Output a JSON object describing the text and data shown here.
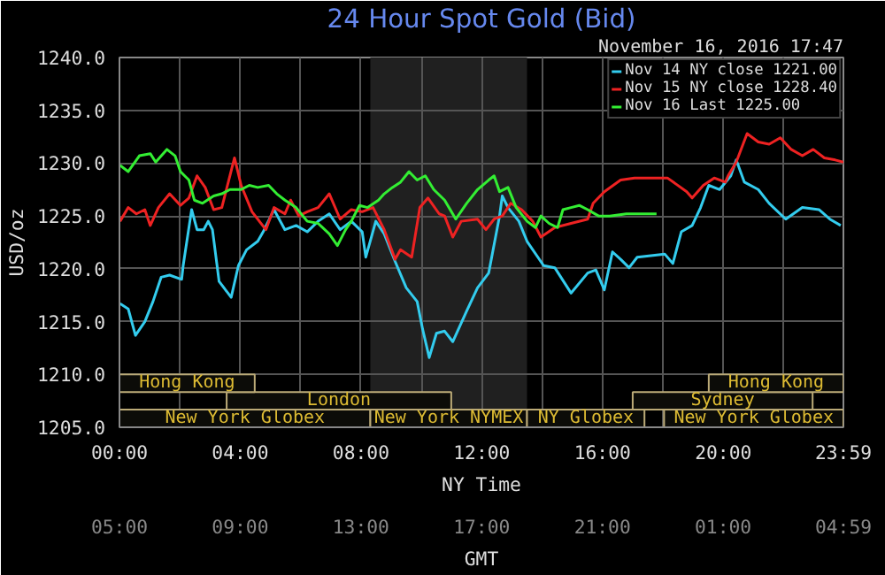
{
  "chart_data": {
    "type": "line",
    "title": "24 Hour Spot Gold (Bid)",
    "subtitle": "November 16, 2016 17:47",
    "ylabel": "USD/oz",
    "xlabel": "NY Time",
    "x2label": "GMT",
    "xlim": [
      0,
      23.98
    ],
    "ylim": [
      1205,
      1240
    ],
    "xticks": [
      {
        "value": 0,
        "label": "00:00"
      },
      {
        "value": 2,
        "label": null
      },
      {
        "value": 4,
        "label": "04:00"
      },
      {
        "value": 6,
        "label": null
      },
      {
        "value": 8,
        "label": "08:00"
      },
      {
        "value": 10,
        "label": null
      },
      {
        "value": 12,
        "label": "12:00"
      },
      {
        "value": 14,
        "label": null
      },
      {
        "value": 16,
        "label": "16:00"
      },
      {
        "value": 18,
        "label": null
      },
      {
        "value": 20,
        "label": "20:00"
      },
      {
        "value": 22,
        "label": null
      },
      {
        "value": 23.98,
        "label": "23:59"
      }
    ],
    "x2lim": [
      "2016-11-16T05:00",
      "2016-11-17T04:59"
    ],
    "x2ticks": [
      {
        "value": "2016-11-16T05:00",
        "label": "05:00"
      },
      {
        "value": "2016-11-16T09:00",
        "label": "09:00"
      },
      {
        "value": "2016-11-16T13:00",
        "label": "13:00"
      },
      {
        "value": "2016-11-16T17:00",
        "label": "17:00"
      },
      {
        "value": "2016-11-16T21:00",
        "label": "21:00"
      },
      {
        "value": "2016-11-17T01:00",
        "label": "01:00"
      },
      {
        "value": "2016-11-17T04:59",
        "label": "04:59"
      }
    ],
    "yticks": [
      {
        "value": 1205,
        "label": "1205.0"
      },
      {
        "value": 1210,
        "label": "1210.0"
      },
      {
        "value": 1215,
        "label": "1215.0"
      },
      {
        "value": 1220,
        "label": "1220.0"
      },
      {
        "value": 1225,
        "label": "1225.0"
      },
      {
        "value": 1230,
        "label": "1230.0"
      },
      {
        "value": 1235,
        "label": "1235.0"
      },
      {
        "value": 1240,
        "label": "1240.0"
      }
    ],
    "grid": true,
    "legend": "top right",
    "marker": "none",
    "line_style": "solid",
    "bands": [
      {
        "axis": "x",
        "from": 8.31,
        "to": 13.5,
        "color": "#202020"
      },
      {
        "axis": "x",
        "from": 0,
        "to": 8.31,
        "label": "New York Globex",
        "color": "#0c0c08"
      },
      {
        "axis": "x",
        "from": 8.31,
        "to": 13.5,
        "label": "New York NYMEX",
        "color": "#0c0c08"
      },
      {
        "axis": "x",
        "from": 13.5,
        "to": 17.39,
        "label": "NY Globex",
        "color": "#0c0c08"
      },
      {
        "axis": "x",
        "from": 18.04,
        "to": 23.98,
        "label": "New York Globex",
        "color": "#0c0c08"
      },
      {
        "axis": "x",
        "from": 3.55,
        "to": 10.99,
        "label": "London",
        "color": "#0c0c08"
      },
      {
        "axis": "x",
        "from": 17.0,
        "to": 22.96,
        "label": "Sydney",
        "color": "#0c0c08"
      },
      {
        "axis": "x",
        "from": 0,
        "to": 4.48,
        "label": "Hong Kong",
        "color": "#0c0c08"
      },
      {
        "axis": "x",
        "from": 19.52,
        "to": 23.98,
        "label": "Hong Kong",
        "color": "#0c0c08"
      }
    ],
    "series": [
      {
        "name": "Nov 14 NY close 1221.00",
        "color": "#33ccee",
        "x": [
          0.02,
          0.29,
          0.53,
          0.84,
          1.11,
          1.38,
          1.66,
          2.06,
          2.11,
          2.39,
          2.57,
          2.79,
          2.94,
          3.08,
          3.3,
          3.7,
          3.94,
          4.21,
          4.58,
          4.76,
          5.12,
          5.48,
          5.85,
          6.22,
          6.58,
          6.95,
          7.31,
          7.68,
          8.04,
          8.16,
          8.49,
          8.77,
          9.13,
          9.5,
          9.86,
          10.04,
          10.26,
          10.5,
          10.77,
          11.04,
          11.5,
          11.86,
          12.23,
          12.59,
          12.68,
          12.87,
          13.23,
          13.5,
          14.05,
          14.42,
          14.96,
          15.51,
          15.78,
          16.06,
          16.33,
          16.6,
          16.88,
          17.15,
          18.06,
          18.33,
          18.61,
          18.97,
          19.25,
          19.52,
          19.88,
          20.25,
          20.43,
          20.7,
          21.16,
          21.52,
          22.07,
          22.62,
          23.17,
          23.53,
          23.89
        ],
        "values": [
          1216.7,
          1216.2,
          1213.7,
          1215.0,
          1216.9,
          1219.2,
          1219.4,
          1219.0,
          1220.3,
          1225.6,
          1223.7,
          1223.7,
          1224.5,
          1223.7,
          1218.8,
          1217.3,
          1220.3,
          1221.8,
          1222.6,
          1223.5,
          1225.6,
          1223.7,
          1224.1,
          1223.5,
          1224.5,
          1225.2,
          1223.7,
          1224.5,
          1223.5,
          1221.1,
          1224.5,
          1223.3,
          1220.7,
          1218.2,
          1216.9,
          1214.3,
          1211.6,
          1213.9,
          1214.1,
          1213.1,
          1216.0,
          1218.2,
          1219.6,
          1225.0,
          1226.9,
          1225.8,
          1224.5,
          1222.6,
          1220.3,
          1220.1,
          1217.7,
          1219.6,
          1219.9,
          1218.0,
          1221.6,
          1220.9,
          1220.1,
          1221.1,
          1221.4,
          1220.5,
          1223.5,
          1224.1,
          1225.8,
          1227.9,
          1227.5,
          1228.8,
          1230.3,
          1228.2,
          1227.5,
          1226.2,
          1224.7,
          1225.8,
          1225.6,
          1224.7,
          1224.1
        ]
      },
      {
        "name": "Nov 15 NY close 1228.40",
        "color": "#ee2222",
        "x": [
          0.02,
          0.29,
          0.56,
          0.84,
          1.02,
          1.29,
          1.66,
          2.02,
          2.3,
          2.57,
          2.84,
          3.12,
          3.39,
          3.81,
          4.03,
          4.39,
          4.85,
          5.12,
          5.48,
          5.67,
          5.94,
          6.22,
          6.58,
          6.95,
          7.31,
          7.68,
          8.04,
          8.4,
          8.77,
          9.13,
          9.31,
          9.68,
          9.95,
          10.22,
          10.59,
          10.77,
          11.04,
          11.32,
          11.86,
          12.14,
          12.41,
          12.68,
          12.96,
          13.32,
          13.69,
          13.96,
          14.42,
          14.96,
          15.51,
          15.69,
          16.06,
          16.6,
          17.06,
          18.15,
          18.79,
          18.97,
          19.34,
          19.7,
          20.07,
          20.16,
          20.43,
          20.79,
          21.16,
          21.52,
          21.89,
          22.25,
          22.62,
          22.98,
          23.35,
          23.71,
          23.98
        ],
        "values": [
          1224.5,
          1225.8,
          1225.2,
          1225.6,
          1224.1,
          1225.8,
          1227.1,
          1226.0,
          1226.7,
          1228.8,
          1227.7,
          1225.6,
          1225.8,
          1230.5,
          1227.9,
          1225.4,
          1223.7,
          1225.8,
          1225.2,
          1226.5,
          1225.0,
          1225.4,
          1225.8,
          1227.1,
          1224.7,
          1225.6,
          1225.4,
          1225.8,
          1223.7,
          1220.9,
          1221.8,
          1221.1,
          1225.8,
          1226.7,
          1225.2,
          1225.0,
          1223.0,
          1224.5,
          1224.7,
          1223.7,
          1224.7,
          1225.0,
          1226.2,
          1225.6,
          1224.5,
          1223.0,
          1223.9,
          1224.3,
          1224.7,
          1226.2,
          1227.3,
          1228.4,
          1228.6,
          1228.6,
          1227.3,
          1226.7,
          1227.9,
          1228.6,
          1228.2,
          1228.8,
          1230.1,
          1232.8,
          1232.0,
          1231.8,
          1232.4,
          1231.3,
          1230.7,
          1231.3,
          1230.5,
          1230.3,
          1230.1
        ]
      },
      {
        "name": "Nov 16 Last 1225.00",
        "color": "#33ee33",
        "x": [
          0.02,
          0.29,
          0.66,
          1.02,
          1.2,
          1.57,
          1.84,
          2.02,
          2.3,
          2.48,
          2.75,
          3.12,
          3.39,
          3.66,
          4.03,
          4.3,
          4.58,
          4.94,
          5.21,
          5.48,
          5.85,
          6.22,
          6.58,
          6.95,
          7.22,
          7.49,
          7.68,
          7.95,
          8.22,
          8.58,
          8.77,
          9.04,
          9.31,
          9.59,
          9.86,
          10.13,
          10.41,
          10.77,
          11.14,
          11.5,
          11.86,
          12.23,
          12.41,
          12.59,
          12.87,
          13.14,
          13.5,
          13.78,
          13.96,
          14.23,
          14.51,
          14.69,
          14.96,
          15.23,
          15.51,
          15.87,
          16.24,
          16.79,
          17.33,
          17.79
        ],
        "values": [
          1229.8,
          1229.2,
          1230.7,
          1230.9,
          1230.1,
          1231.3,
          1230.7,
          1229.2,
          1228.4,
          1226.5,
          1226.2,
          1226.9,
          1227.1,
          1227.5,
          1227.5,
          1227.9,
          1227.7,
          1227.9,
          1227.1,
          1226.5,
          1225.8,
          1224.5,
          1224.3,
          1223.3,
          1222.2,
          1223.7,
          1224.5,
          1226.0,
          1225.8,
          1226.5,
          1227.1,
          1227.7,
          1228.2,
          1229.2,
          1228.4,
          1228.8,
          1227.5,
          1226.5,
          1224.7,
          1226.2,
          1227.5,
          1228.4,
          1228.8,
          1227.3,
          1227.7,
          1225.8,
          1224.5,
          1223.9,
          1225.0,
          1224.3,
          1223.9,
          1225.6,
          1225.8,
          1226.0,
          1225.6,
          1225.0,
          1225.0,
          1225.2,
          1225.2,
          1225.2
        ]
      }
    ]
  }
}
